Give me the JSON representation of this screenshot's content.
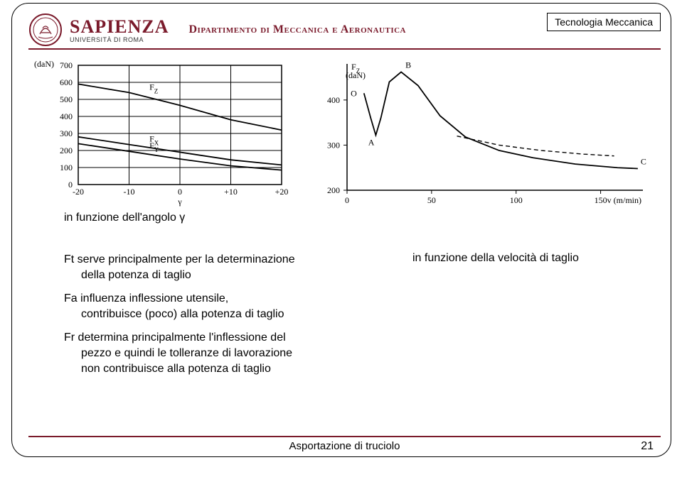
{
  "header": {
    "university": "SAPIENZA",
    "university_sub": "UNIVERSITÀ DI ROMA",
    "department": "Dipartimento di Meccanica e Aeronautica",
    "course": "Tecnologia Meccanica",
    "brand_color": "#7a1a2b"
  },
  "chart_left": {
    "type": "line",
    "caption": "in funzione dell'angolo γ",
    "x_label": "γ",
    "y_label": "(daN)",
    "x_ticks": [
      "-20",
      "-10",
      "0",
      "+10",
      "+20"
    ],
    "y_ticks": [
      "0",
      "100",
      "200",
      "300",
      "400",
      "500",
      "600",
      "700"
    ],
    "xlim": [
      -20,
      20
    ],
    "ylim": [
      0,
      700
    ],
    "series": [
      {
        "name": "FZ",
        "label": "F",
        "sub": "Z",
        "points": [
          [
            -20,
            590
          ],
          [
            -10,
            540
          ],
          [
            0,
            465
          ],
          [
            10,
            380
          ],
          [
            20,
            320
          ]
        ]
      },
      {
        "name": "FX",
        "label": "F",
        "sub": "X",
        "points": [
          [
            -20,
            280
          ],
          [
            -10,
            235
          ],
          [
            0,
            190
          ],
          [
            10,
            145
          ],
          [
            20,
            115
          ]
        ]
      },
      {
        "name": "FY",
        "label": "F",
        "sub": "Y",
        "points": [
          [
            -20,
            240
          ],
          [
            -10,
            195
          ],
          [
            0,
            150
          ],
          [
            10,
            110
          ],
          [
            20,
            85
          ]
        ]
      }
    ],
    "grid_color": "#000000",
    "line_color": "#000000",
    "line_width": 1.8,
    "background_color": "#ffffff"
  },
  "chart_right": {
    "type": "line",
    "caption": "in funzione della velocità di taglio",
    "x_label": "v (m/min)",
    "y_label_top": "F",
    "y_label_sub": "Z",
    "y_unit": "(daN)",
    "x_ticks": [
      "0",
      "50",
      "100",
      "150"
    ],
    "y_ticks": [
      "200",
      "300",
      "400"
    ],
    "xlim": [
      0,
      175
    ],
    "ylim": [
      200,
      480
    ],
    "markers": [
      {
        "label": "O",
        "x": 10,
        "y": 415
      },
      {
        "label": "A",
        "x": 17,
        "y": 322
      },
      {
        "label": "B",
        "x": 32,
        "y": 462
      },
      {
        "label": "C",
        "x": 172,
        "y": 248
      }
    ],
    "curve": [
      [
        10,
        415
      ],
      [
        14,
        360
      ],
      [
        17,
        322
      ],
      [
        20,
        360
      ],
      [
        25,
        440
      ],
      [
        32,
        462
      ],
      [
        42,
        432
      ],
      [
        55,
        365
      ],
      [
        70,
        318
      ],
      [
        90,
        288
      ],
      [
        110,
        272
      ],
      [
        135,
        258
      ],
      [
        160,
        250
      ],
      [
        172,
        248
      ]
    ],
    "dashed": [
      [
        65,
        320
      ],
      [
        90,
        300
      ],
      [
        115,
        288
      ],
      [
        140,
        280
      ],
      [
        158,
        276
      ]
    ],
    "line_color": "#000000",
    "line_width": 1.8,
    "dash_pattern": "6,4",
    "background_color": "#ffffff"
  },
  "body_text": {
    "p1_l1": "Ft serve principalmente per la determinazione",
    "p1_l2": "della potenza di taglio",
    "p2_l1": "Fa influenza inflessione utensile,",
    "p2_l2": "contribuisce (poco) alla potenza di taglio",
    "p3_l1": "Fr determina principalmente l'inflessione del",
    "p3_l2": "pezzo e quindi le tolleranze di lavorazione",
    "p3_l3": "non contribuisce alla potenza di taglio"
  },
  "footer": {
    "title": "Asportazione di truciolo",
    "page": "21"
  }
}
